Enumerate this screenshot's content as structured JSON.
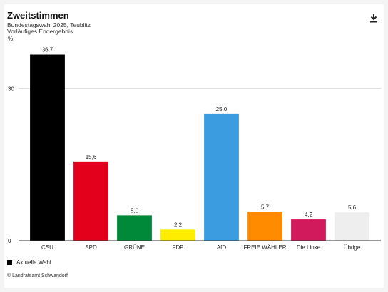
{
  "header": {
    "title": "Zweitstimmen",
    "subtitle": "Bundestagswahl 2025, Teublitz",
    "note": "Vorläufiges Endergebnis"
  },
  "icons": {
    "download": "download-icon"
  },
  "chart_data": {
    "type": "bar",
    "ylabel": "%",
    "ylim": [
      0,
      40
    ],
    "yticks": [
      0,
      30
    ],
    "grid": "horizontal",
    "categories": [
      "CSU",
      "SPD",
      "GRÜNE",
      "FDP",
      "AfD",
      "FREIE WÄHLER",
      "Die Linke",
      "Übrige"
    ],
    "series": [
      {
        "name": "Aktuelle Wahl",
        "values": [
          36.7,
          15.6,
          5.0,
          2.2,
          25.0,
          5.7,
          4.2,
          5.6
        ],
        "labels": [
          "36,7",
          "15,6",
          "5,0",
          "2,2",
          "25,0",
          "5,7",
          "4,2",
          "5,6"
        ]
      }
    ],
    "colors": [
      "#000000",
      "#e2001a",
      "#008939",
      "#ffed00",
      "#3b9de0",
      "#ff8c00",
      "#d11a5c",
      "#eeeeee"
    ],
    "legend_position": "bottom-left"
  },
  "legend": {
    "label": "Aktuelle Wahl"
  },
  "footer": {
    "credit": "© Landratsamt Schwandorf"
  }
}
